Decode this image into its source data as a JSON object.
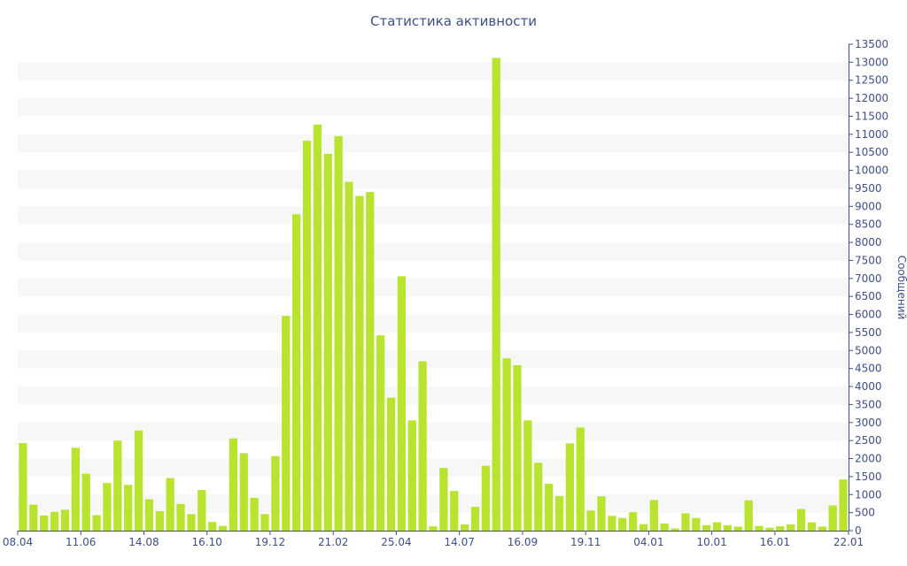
{
  "chart_data": {
    "type": "bar",
    "title": "Статистика активности",
    "xlabel": "",
    "ylabel": "Сообщений",
    "ylim": [
      0,
      13500
    ],
    "y_axis_position": "right",
    "y_tick_step": 500,
    "x_tick_labels": [
      {
        "label": "08.04",
        "index": 0
      },
      {
        "label": "11.06",
        "index": 6
      },
      {
        "label": "14.08",
        "index": 12
      },
      {
        "label": "16.10",
        "index": 18
      },
      {
        "label": "19.12",
        "index": 24
      },
      {
        "label": "21.02",
        "index": 30
      },
      {
        "label": "25.04",
        "index": 36
      },
      {
        "label": "14.07",
        "index": 42
      },
      {
        "label": "16.09",
        "index": 48
      },
      {
        "label": "19.11",
        "index": 54
      },
      {
        "label": "04.01",
        "index": 60
      },
      {
        "label": "10.01",
        "index": 66
      },
      {
        "label": "16.01",
        "index": 72
      },
      {
        "label": "22.01",
        "index": 78
      }
    ],
    "values": [
      2430,
      720,
      420,
      520,
      580,
      2300,
      1580,
      430,
      1320,
      2500,
      1270,
      2780,
      870,
      540,
      1460,
      740,
      460,
      1130,
      240,
      130,
      2560,
      2150,
      910,
      460,
      2070,
      5960,
      8780,
      10820,
      11270,
      10460,
      10950,
      9680,
      9290,
      9400,
      5420,
      3690,
      7060,
      3060,
      4700,
      120,
      1740,
      1100,
      170,
      660,
      1800,
      13120,
      4780,
      4590,
      3060,
      1880,
      1300,
      960,
      2420,
      2860,
      560,
      950,
      410,
      350,
      510,
      180,
      850,
      200,
      60,
      480,
      350,
      150,
      230,
      150,
      110,
      840,
      130,
      80,
      120,
      170,
      600,
      230,
      110,
      700,
      1420
    ],
    "bar_color": "#b8e32e",
    "grid_band_color": "#f7f7f7",
    "axis_color": "#3f4f87",
    "grid": "horizontal bands"
  }
}
